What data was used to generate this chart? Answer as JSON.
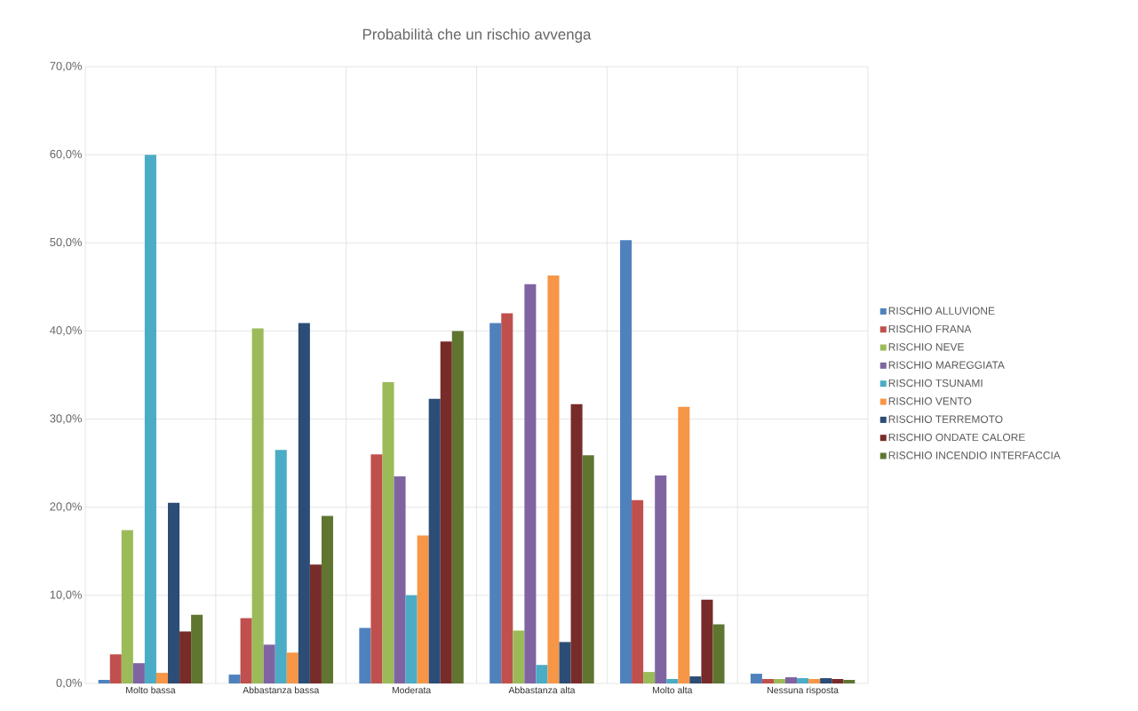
{
  "chart_data": {
    "type": "bar",
    "title": "Probabilità che un rischio avvenga",
    "categories": [
      "Molto bassa",
      "Abbastanza bassa",
      "Moderata",
      "Abbastanza alta",
      "Molto alta",
      "Nessuna risposta"
    ],
    "series": [
      {
        "name": "RISCHIO ALLUVIONE",
        "color": "#4f81bd",
        "values": [
          0.4,
          1.0,
          6.3,
          40.9,
          50.3,
          1.1
        ]
      },
      {
        "name": "RISCHIO FRANA",
        "color": "#c0504d",
        "values": [
          3.3,
          7.4,
          26.0,
          42.0,
          20.8,
          0.5
        ]
      },
      {
        "name": "RISCHIO NEVE",
        "color": "#9bbb59",
        "values": [
          17.4,
          40.3,
          34.2,
          6.0,
          1.3,
          0.5
        ]
      },
      {
        "name": "RISCHIO MAREGGIATA",
        "color": "#8064a2",
        "values": [
          2.3,
          4.4,
          23.5,
          45.3,
          23.6,
          0.7
        ]
      },
      {
        "name": "RISCHIO TSUNAMI",
        "color": "#4bacc6",
        "values": [
          60.0,
          26.5,
          10.0,
          2.1,
          0.5,
          0.6
        ]
      },
      {
        "name": "RISCHIO VENTO",
        "color": "#f79646",
        "values": [
          1.2,
          3.5,
          16.8,
          46.3,
          31.4,
          0.5
        ]
      },
      {
        "name": "RISCHIO TERREMOTO",
        "color": "#2c4d75",
        "values": [
          20.5,
          40.9,
          32.3,
          4.7,
          0.8,
          0.6
        ]
      },
      {
        "name": "RISCHIO ONDATE CALORE",
        "color": "#772c2a",
        "values": [
          5.9,
          13.5,
          38.8,
          31.7,
          9.5,
          0.5
        ]
      },
      {
        "name": "RISCHIO INCENDIO INTERFACCIA",
        "color": "#5f7530",
        "values": [
          7.8,
          19.0,
          40.0,
          25.9,
          6.7,
          0.4
        ]
      }
    ],
    "ylim": [
      0,
      70
    ],
    "yticks": [
      {
        "value": 0,
        "label": "0,0%"
      },
      {
        "value": 10,
        "label": "10,0%"
      },
      {
        "value": 20,
        "label": "20,0%"
      },
      {
        "value": 30,
        "label": "30,0%"
      },
      {
        "value": 40,
        "label": "40,0%"
      },
      {
        "value": 50,
        "label": "50,0%"
      },
      {
        "value": 60,
        "label": "60,0%"
      },
      {
        "value": 70,
        "label": "70,0%"
      }
    ],
    "grid": true,
    "legend": "right"
  }
}
